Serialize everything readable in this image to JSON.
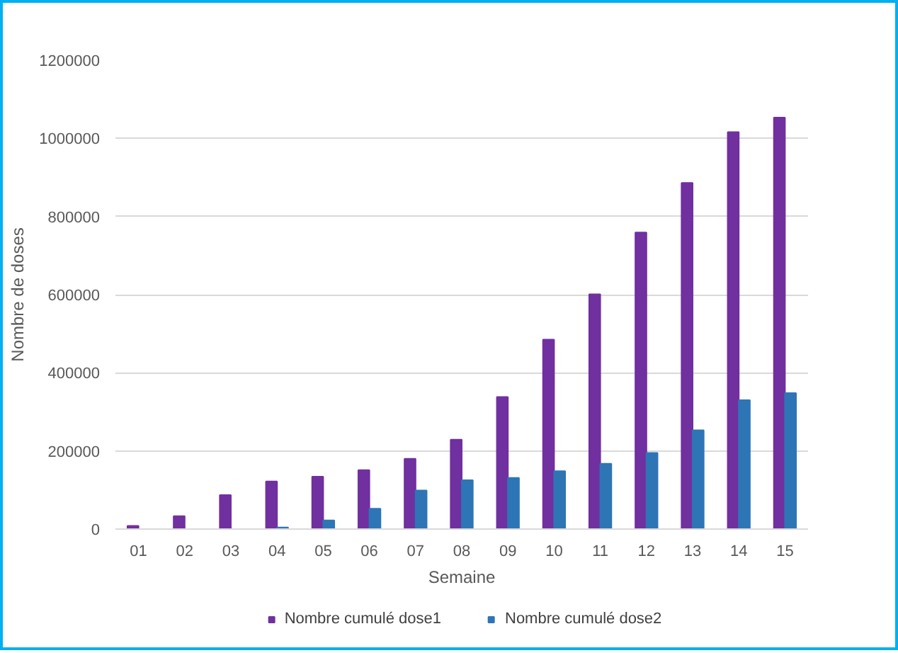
{
  "chart_data": {
    "type": "bar",
    "xlabel": "Semaine",
    "ylabel": "Nombre de doses",
    "categories": [
      "01",
      "02",
      "03",
      "04",
      "05",
      "06",
      "07",
      "08",
      "09",
      "10",
      "11",
      "12",
      "13",
      "14",
      "15"
    ],
    "series": [
      {
        "name": "Nombre cumulé dose1",
        "color": "#7030a0",
        "values": [
          8000,
          33000,
          87000,
          122000,
          134000,
          151000,
          180000,
          229000,
          338000,
          485000,
          601000,
          759000,
          886000,
          1016000,
          1053000
        ]
      },
      {
        "name": "Nombre cumulé dose2",
        "color": "#2e75b6",
        "values": [
          0,
          0,
          0,
          4000,
          22000,
          52000,
          99000,
          125000,
          131000,
          148000,
          167000,
          195000,
          253000,
          330000,
          348000
        ]
      }
    ],
    "ylim": [
      0,
      1200000
    ],
    "yticks": [
      0,
      200000,
      400000,
      600000,
      800000,
      1000000,
      1200000
    ],
    "grid": "y",
    "legend": "bottom"
  }
}
